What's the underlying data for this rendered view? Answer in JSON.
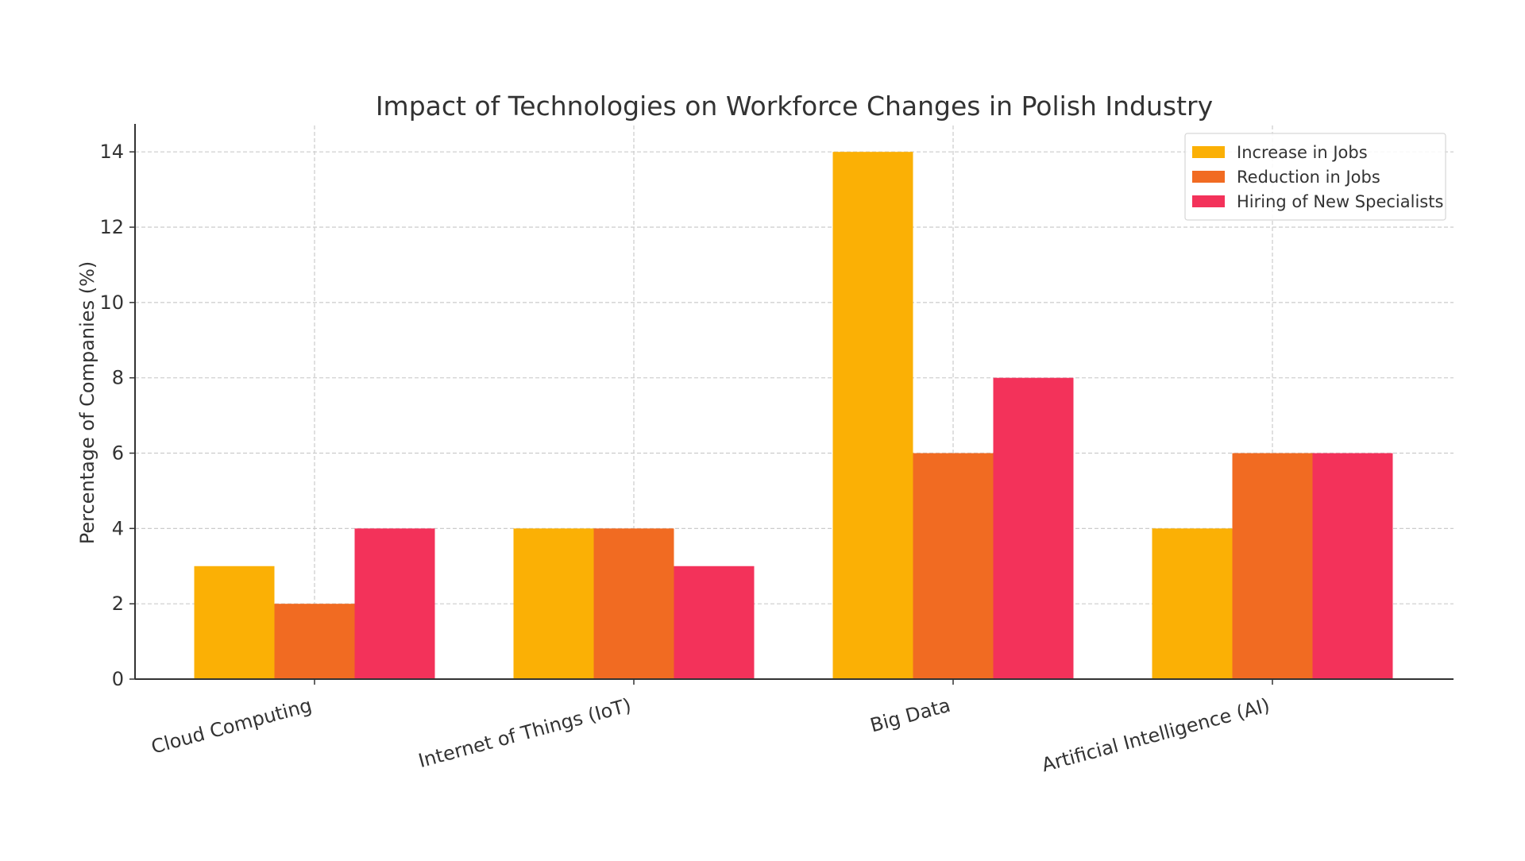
{
  "chart_data": {
    "type": "bar",
    "title": "Impact of Technologies on Workforce Changes in Polish Industry",
    "xlabel": "",
    "ylabel": "Percentage of Companies (%)",
    "categories": [
      "Cloud Computing",
      "Internet of Things (IoT)",
      "Big Data",
      "Artificial Intelligence (AI)"
    ],
    "series": [
      {
        "name": "Increase in Jobs",
        "color": "#FBB005",
        "values": [
          3,
          4,
          14,
          4
        ]
      },
      {
        "name": "Reduction in Jobs",
        "color": "#F16B22",
        "values": [
          2,
          4,
          6,
          6
        ]
      },
      {
        "name": "Hiring of New Specialists",
        "color": "#F3325A",
        "values": [
          4,
          3,
          8,
          6
        ]
      }
    ],
    "ylim": [
      0,
      14.7
    ],
    "yticks": [
      "0",
      "2",
      "4",
      "6",
      "8",
      "10",
      "12",
      "14"
    ],
    "grid": true,
    "legend_position": "top-right"
  }
}
